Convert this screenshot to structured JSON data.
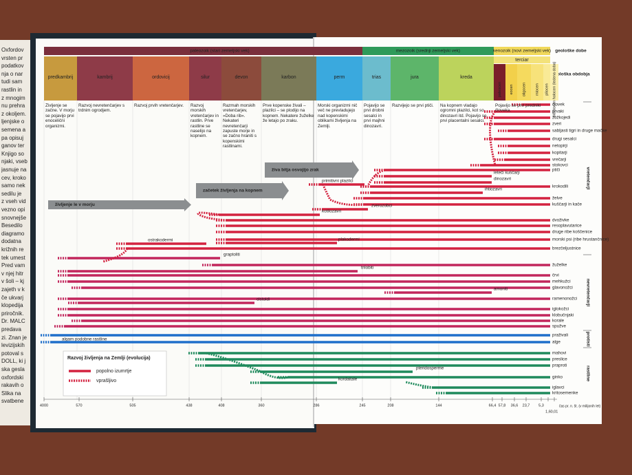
{
  "left_page_fragments": [
    "Oxfordov",
    "vrsten pr",
    "podatkov",
    "nja o nar",
    "tudi sam",
    "rastlin in",
    "z mnogim",
    "nu prehra",
    "z okoljem.",
    "ljenjske o",
    "semena a",
    "pa opisuj",
    "ganov ter",
    "Knjigo so",
    "njaki, vseb",
    "jasnuje na",
    "cev, kroko",
    "samo nek",
    "sedilu je",
    "z vseh vid",
    "vezno opi",
    "snovnejše",
    "Besedilo",
    "diagramo",
    "dodatna",
    "križnih re",
    "tek umest",
    "Pred vam",
    "v njej hitr",
    "v šoli – kj",
    "zajeth v k",
    "če ukvarj",
    "klopedija",
    "priročnik.",
    "Dr. MALC",
    "predava",
    "zi. Znan je",
    "levizijskih",
    "potoval s",
    "DOLL, ki j",
    "ska gesla",
    "oxfordski",
    "rakavih o",
    "Slika na",
    "svatbene"
  ],
  "eras": [
    {
      "label": "paleozoik (stari zemeljski vek)"
    },
    {
      "label": "mezozoik (srednji zemeljski vek)"
    },
    {
      "label": "kenozoik (novi zemeljski vek)",
      "description": "Pojavijo se prvi predniki človeka."
    }
  ],
  "era_row_label": "geološke dobe",
  "tertiary_label": "terciar",
  "period_row_label": "geološka obdobja",
  "periods": [
    {
      "name": "predkambrij",
      "description": "Življenje se začne. V morju se pojavijo prvi enocelični organizmi."
    },
    {
      "name": "kambrij",
      "description": "Razvoj nevretenčarjev s trdnim ogrodjem."
    },
    {
      "name": "ordovicij",
      "description": "Razvoj prvih vretenčarjev."
    },
    {
      "name": "silur",
      "description": "Razvoj morskih vretenčarjev in rastlin. Prve rastline se naselijo na kopnem."
    },
    {
      "name": "devon",
      "description": "Razmah morskih vretenčarjev, »Doba rib«. Nekateri nevretenčarji zapuste morje in se začno hraniti s kopenskimi rastlinami."
    },
    {
      "name": "karbon",
      "description": "Prve kopenske živali – plazilci – se plodijo na kopnem. Nekatere žuželke že letajo po zraku."
    },
    {
      "name": "perm",
      "description": "Morski organizmi nič več ne prevladujejo nad kopenskimi oblikami življenja na Zemlji."
    },
    {
      "name": "trias",
      "description": "Pojavijo se prvi drobni sesalci in prvi majhni dinozavri."
    },
    {
      "name": "jura",
      "description": "Razvijejo se prvi ptiči."
    },
    {
      "name": "kreda",
      "description": "Na kopnem vladajo ogromni plazilci, kot so dinozavri itd. Pojavijo se prvi placentalni sesalci."
    }
  ],
  "epochs": [
    "paleocen",
    "eocen",
    "oligocen",
    "miocen",
    "pliocen",
    "pleistocen holocen (ledena doba)"
  ],
  "arrows": [
    "življenje le v morju",
    "začetek življenja na kopnem",
    "živa bitja osvojijo zrak"
  ],
  "lineages": [
    "človek",
    "prvaki",
    "žužkojedi",
    "zveri",
    "sabljasti tigri in druge mačke",
    "drugi sesalci",
    "netopirji",
    "kopitarji",
    "vrečarji",
    "stokovci",
    "ptiči",
    "leteči kuščarji",
    "dinozavri",
    "krokodili",
    "ihtiozavri",
    "želve",
    "kuščarji in kače",
    "primitivni plazilci",
    "zverozobci",
    "kotilozavri",
    "dvoživke",
    "resoplavutarice",
    "druge ribe koščenice",
    "morski psi (ribe hrustančnice)",
    "plakodermi",
    "ostrakodermi",
    "brezčeljustnice",
    "graptoliti",
    "žuželke",
    "trilobiti",
    "črvi",
    "mehkužci",
    "glavonožci",
    "amoniti",
    "ramenonožci",
    "cistoidi",
    "iglokožci",
    "klobučnjaki",
    "korale",
    "spužve",
    "praživali",
    "algam podobne rastline",
    "alge",
    "mahovi",
    "preslice",
    "praproti",
    "pteridosperme",
    "ginko",
    "kordaitale",
    "iglavci",
    "kritosemenke"
  ],
  "groups": [
    "vretenčarji",
    "nevretenčarji",
    "protisti",
    "rastline"
  ],
  "time_axis": {
    "ticks": [
      "4000",
      "570",
      "505",
      "438",
      "408",
      "360",
      "286",
      "245",
      "208",
      "144",
      "66,4",
      "57,8",
      "36,6",
      "23,7",
      "5,3",
      "1,6",
      "0,01"
    ],
    "unit": "čas pr. n. št. (v milijonih let)"
  },
  "legend": {
    "title": "Razvoj življenja na Zemlji (evolucija)",
    "items": [
      "popolno izumrtje",
      "vprašljivo"
    ]
  }
}
